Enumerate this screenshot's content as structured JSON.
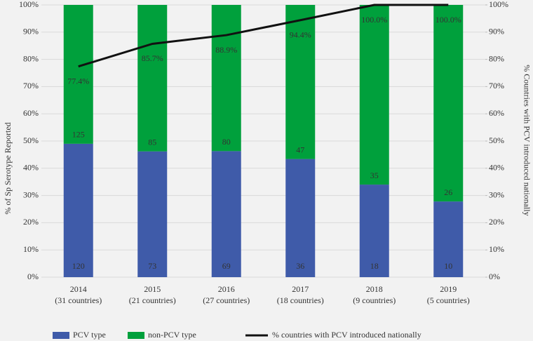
{
  "chart_data": {
    "type": "stacked_bar_line",
    "y_label": "% of Sp Serotype Reported",
    "y2_label": "% Countries with PCV introduced nationally",
    "categories": [
      "2014",
      "2015",
      "2016",
      "2017",
      "2018",
      "2019"
    ],
    "category_sublabels": [
      "(31 countries)",
      "(21 countries)",
      "(27 countries)",
      "(18 countries)",
      "(9 countries)",
      "(5 countries)"
    ],
    "series": [
      {
        "name": "PCV type",
        "color": "#3f5ba9",
        "values": [
          49.0,
          46.2,
          46.3,
          43.4,
          34.0,
          27.8
        ],
        "counts": [
          "120",
          "73",
          "69",
          "36",
          "18",
          "10"
        ]
      },
      {
        "name": "non-PCV type",
        "color": "#00a03c",
        "values": [
          51.0,
          53.8,
          53.7,
          56.6,
          66.0,
          72.2
        ],
        "counts": [
          "125",
          "85",
          "80",
          "47",
          "35",
          "26"
        ]
      },
      {
        "name": "% countries with PCV introduced nationally",
        "color": "#111111",
        "axis": "y2",
        "values": [
          77.4,
          85.7,
          88.9,
          94.4,
          100.0,
          100.0
        ],
        "value_labels": [
          "77.4%",
          "85.7%",
          "88.9%",
          "94.4%",
          "100.0%",
          "100.0%"
        ]
      }
    ],
    "ylim": [
      0,
      100
    ],
    "yticks": [
      {
        "value": 0,
        "label": "0%"
      },
      {
        "value": 10,
        "label": "10%"
      },
      {
        "value": 20,
        "label": "20%"
      },
      {
        "value": 30,
        "label": "30%"
      },
      {
        "value": 40,
        "label": "40%"
      },
      {
        "value": 50,
        "label": "50%"
      },
      {
        "value": 60,
        "label": "60%"
      },
      {
        "value": 70,
        "label": "70%"
      },
      {
        "value": 80,
        "label": "80%"
      },
      {
        "value": 90,
        "label": "90%"
      },
      {
        "value": 100,
        "label": "100%"
      }
    ],
    "y2lim": [
      0,
      100
    ],
    "y2ticks": [
      {
        "value": 0,
        "label": "0%"
      },
      {
        "value": 10,
        "label": "10%"
      },
      {
        "value": 20,
        "label": "20%"
      },
      {
        "value": 30,
        "label": "30%"
      },
      {
        "value": 40,
        "label": "40%"
      },
      {
        "value": 50,
        "label": "50%"
      },
      {
        "value": 60,
        "label": "60%"
      },
      {
        "value": 70,
        "label": "70%"
      },
      {
        "value": 80,
        "label": "80%"
      },
      {
        "value": 90,
        "label": "90%"
      },
      {
        "value": 100,
        "label": "100%"
      }
    ],
    "grid": true,
    "legend": "bottom"
  }
}
